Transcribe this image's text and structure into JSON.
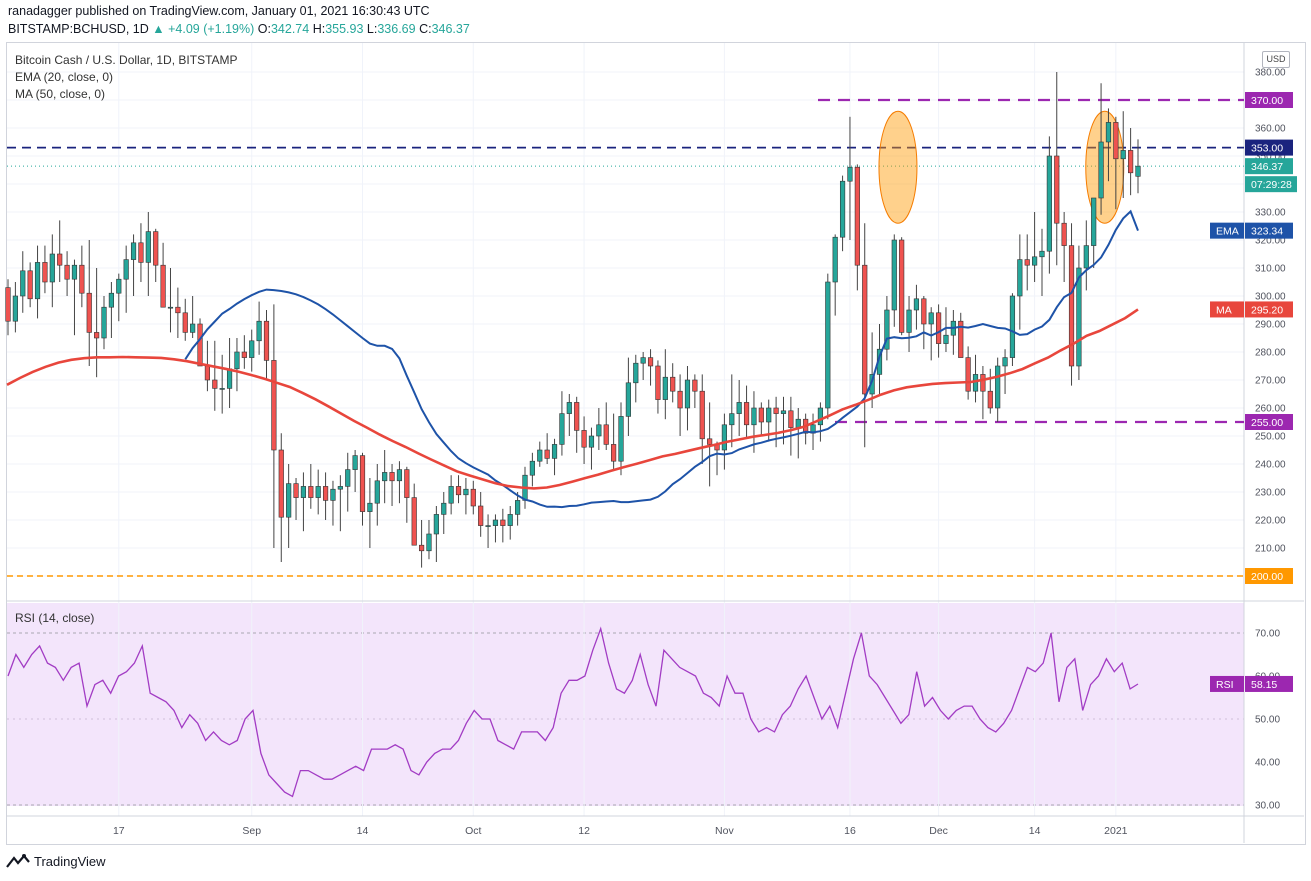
{
  "header": {
    "line1": "ranadagger published on TradingView.com, January 01, 2021 16:30:43 UTC",
    "symbol": "BITSTAMP:BCHUSD, 1D",
    "change": "+4.09 (+1.19%)",
    "o_label": "O:",
    "o_value": "342.74",
    "h_label": "H:",
    "h_value": "355.93",
    "l_label": "L:",
    "l_value": "336.69",
    "c_label": "C:",
    "c_value": "346.37"
  },
  "legend": {
    "title": "Bitcoin Cash / U.S. Dollar, 1D, BITSTAMP",
    "ema": "EMA (20, close, 0)",
    "ma": "MA (50, close, 0)",
    "rsi": "RSI (14, close)"
  },
  "currency_button": "USD",
  "footer": {
    "brand": "TradingView"
  },
  "colors": {
    "up": "#26a69a",
    "down": "#ef5350",
    "ema": "#1e53a8",
    "ma": "#e8463c",
    "rsi": "#a23cc4",
    "purple_level": "#9c27b0",
    "blue_level": "#1a237e",
    "orange_level": "#ff9800"
  },
  "chart_data": [
    {
      "type": "candlestick",
      "y_ticks": [
        "200.00",
        "210.00",
        "220.00",
        "230.00",
        "240.00",
        "250.00",
        "260.00",
        "270.00",
        "280.00",
        "290.00",
        "300.00",
        "310.00",
        "320.00",
        "330.00",
        "340.00",
        "350.00",
        "360.00",
        "370.00",
        "380.00"
      ],
      "x_ticks": [
        "17",
        "Sep",
        "14",
        "Oct",
        "12",
        "Nov",
        "16",
        "Dec",
        "14",
        "2021"
      ],
      "ylim": [
        196,
        384
      ],
      "levels": [
        {
          "label": "370.00",
          "value": 370,
          "style": "purple-dash"
        },
        {
          "label": "353.00",
          "value": 353,
          "style": "blue-dash"
        },
        {
          "label": "255.00",
          "value": 255,
          "style": "purple-dash"
        },
        {
          "label": "200.00",
          "value": 200,
          "style": "orange-dash"
        }
      ],
      "last_price": {
        "label": "346.37",
        "countdown": "07:29:28"
      },
      "ema_label": {
        "name": "EMA",
        "value": "323.34"
      },
      "ma_label": {
        "name": "MA",
        "value": "295.20"
      },
      "candles_ohlc": [
        [
          303,
          306,
          286,
          291
        ],
        [
          291,
          305,
          287,
          300
        ],
        [
          300,
          316,
          294,
          309
        ],
        [
          309,
          312,
          296,
          299
        ],
        [
          299,
          318,
          292,
          312
        ],
        [
          312,
          318,
          301,
          305
        ],
        [
          305,
          322,
          296,
          315
        ],
        [
          315,
          327,
          305,
          311
        ],
        [
          311,
          316,
          300,
          306
        ],
        [
          306,
          313,
          286,
          311
        ],
        [
          311,
          318,
          296,
          301
        ],
        [
          301,
          320,
          275,
          287
        ],
        [
          287,
          310,
          271,
          285
        ],
        [
          285,
          300,
          281,
          296
        ],
        [
          296,
          305,
          285,
          301
        ],
        [
          301,
          308,
          291,
          306
        ],
        [
          306,
          318,
          294,
          313
        ],
        [
          313,
          322,
          300,
          319
        ],
        [
          319,
          326,
          305,
          312
        ],
        [
          312,
          330,
          300,
          323
        ],
        [
          323,
          324,
          305,
          311
        ],
        [
          311,
          319,
          300,
          296
        ],
        [
          296,
          310,
          287,
          296
        ],
        [
          296,
          303,
          285,
          294
        ],
        [
          294,
          299,
          284,
          287
        ],
        [
          287,
          300,
          285,
          290
        ],
        [
          290,
          292,
          275,
          275
        ],
        [
          275,
          284,
          266,
          270
        ],
        [
          270,
          284,
          259,
          267
        ],
        [
          267,
          279,
          258,
          267
        ],
        [
          267,
          285,
          260,
          274
        ],
        [
          274,
          285,
          266,
          280
        ],
        [
          280,
          286,
          274,
          278
        ],
        [
          278,
          288,
          273,
          284
        ],
        [
          284,
          298,
          279,
          291
        ],
        [
          291,
          295,
          270,
          277
        ],
        [
          277,
          297,
          210,
          245
        ],
        [
          245,
          251,
          205,
          221
        ],
        [
          221,
          240,
          210,
          233
        ],
        [
          233,
          235,
          220,
          228
        ],
        [
          228,
          237,
          216,
          232
        ],
        [
          232,
          240,
          224,
          228
        ],
        [
          228,
          238,
          222,
          232
        ],
        [
          232,
          237,
          220,
          227
        ],
        [
          227,
          234,
          218,
          231
        ],
        [
          231,
          236,
          216,
          232
        ],
        [
          232,
          244,
          223,
          238
        ],
        [
          238,
          245,
          230,
          243
        ],
        [
          243,
          244,
          218,
          223
        ],
        [
          223,
          235,
          210,
          226
        ],
        [
          226,
          240,
          218,
          234
        ],
        [
          234,
          245,
          226,
          237
        ],
        [
          237,
          240,
          225,
          234
        ],
        [
          234,
          241,
          226,
          238
        ],
        [
          238,
          239,
          219,
          228
        ],
        [
          228,
          233,
          212,
          211
        ],
        [
          211,
          220,
          203,
          209
        ],
        [
          209,
          220,
          206,
          215
        ],
        [
          215,
          225,
          205,
          222
        ],
        [
          222,
          230,
          215,
          226
        ],
        [
          226,
          236,
          222,
          232
        ],
        [
          232,
          236,
          226,
          229
        ],
        [
          229,
          235,
          222,
          231
        ],
        [
          231,
          234,
          222,
          225
        ],
        [
          225,
          230,
          214,
          218
        ],
        [
          218,
          222,
          210,
          218
        ],
        [
          218,
          222,
          212,
          220
        ],
        [
          220,
          224,
          212,
          218
        ],
        [
          218,
          225,
          213,
          222
        ],
        [
          222,
          230,
          218,
          227
        ],
        [
          227,
          239,
          224,
          236
        ],
        [
          236,
          244,
          232,
          241
        ],
        [
          241,
          248,
          239,
          245
        ],
        [
          245,
          251,
          240,
          242
        ],
        [
          242,
          249,
          236,
          247
        ],
        [
          247,
          266,
          243,
          258
        ],
        [
          258,
          265,
          250,
          262
        ],
        [
          262,
          264,
          244,
          252
        ],
        [
          252,
          257,
          240,
          246
        ],
        [
          246,
          253,
          238,
          250
        ],
        [
          250,
          260,
          245,
          254
        ],
        [
          254,
          262,
          245,
          247
        ],
        [
          247,
          258,
          238,
          241
        ],
        [
          241,
          262,
          236,
          257
        ],
        [
          257,
          278,
          250,
          269
        ],
        [
          269,
          279,
          262,
          276
        ],
        [
          276,
          280,
          270,
          278
        ],
        [
          278,
          281,
          268,
          275
        ],
        [
          275,
          277,
          258,
          263
        ],
        [
          263,
          281,
          256,
          271
        ],
        [
          271,
          276,
          262,
          266
        ],
        [
          266,
          272,
          250,
          260
        ],
        [
          260,
          275,
          252,
          270
        ],
        [
          270,
          272,
          260,
          266
        ],
        [
          266,
          272,
          240,
          249
        ],
        [
          249,
          262,
          232,
          247
        ],
        [
          247,
          248,
          236,
          245
        ],
        [
          245,
          258,
          238,
          254
        ],
        [
          254,
          272,
          246,
          258
        ],
        [
          258,
          270,
          250,
          262
        ],
        [
          262,
          268,
          249,
          254
        ],
        [
          254,
          266,
          244,
          260
        ],
        [
          260,
          262,
          250,
          255
        ],
        [
          255,
          263,
          248,
          260
        ],
        [
          260,
          264,
          246,
          258
        ],
        [
          258,
          264,
          247,
          259
        ],
        [
          259,
          264,
          243,
          253
        ],
        [
          253,
          260,
          242,
          256
        ],
        [
          256,
          258,
          247,
          251
        ],
        [
          251,
          258,
          245,
          254
        ],
        [
          254,
          262,
          248,
          260
        ],
        [
          260,
          308,
          256,
          305
        ],
        [
          305,
          322,
          293,
          321
        ],
        [
          321,
          343,
          316,
          341
        ],
        [
          341,
          364,
          320,
          346
        ],
        [
          346,
          347,
          302,
          311
        ],
        [
          311,
          326,
          246,
          265
        ],
        [
          265,
          287,
          260,
          272
        ],
        [
          272,
          290,
          265,
          281
        ],
        [
          281,
          300,
          277,
          295
        ],
        [
          295,
          322,
          289,
          320
        ],
        [
          320,
          321,
          286,
          287
        ],
        [
          287,
          300,
          280,
          295
        ],
        [
          295,
          304,
          288,
          299
        ],
        [
          299,
          300,
          281,
          290
        ],
        [
          290,
          296,
          277,
          294
        ],
        [
          294,
          297,
          278,
          283
        ],
        [
          283,
          296,
          280,
          286
        ],
        [
          286,
          295,
          279,
          291
        ],
        [
          291,
          294,
          278,
          278
        ],
        [
          278,
          282,
          263,
          266
        ],
        [
          266,
          279,
          262,
          272
        ],
        [
          272,
          275,
          256,
          266
        ],
        [
          266,
          274,
          258,
          260
        ],
        [
          260,
          278,
          255,
          275
        ],
        [
          275,
          281,
          265,
          278
        ],
        [
          278,
          301,
          275,
          300
        ],
        [
          300,
          322,
          288,
          313
        ],
        [
          313,
          322,
          302,
          311
        ],
        [
          311,
          330,
          305,
          314
        ],
        [
          314,
          324,
          300,
          316
        ],
        [
          316,
          357,
          308,
          350
        ],
        [
          350,
          380,
          311,
          326
        ],
        [
          326,
          330,
          305,
          318
        ],
        [
          318,
          326,
          268,
          275
        ],
        [
          275,
          318,
          270,
          310
        ],
        [
          310,
          327,
          302,
          318
        ],
        [
          318,
          335,
          310,
          335
        ],
        [
          335,
          376,
          329,
          355
        ],
        [
          355,
          367,
          341,
          362
        ],
        [
          362,
          364,
          331,
          349
        ],
        [
          349,
          366,
          335,
          352
        ],
        [
          352,
          360,
          336,
          344
        ],
        [
          342.74,
          355.93,
          336.69,
          346.37
        ]
      ],
      "ema20": [
        277.4,
        281.4,
        284.6,
        288.1,
        290.9,
        293.7,
        295.4,
        297.3,
        298.9,
        300.3,
        301.5,
        302.3,
        302.1,
        301.8,
        301.3,
        300.6,
        299.6,
        298.4,
        297,
        295.3,
        293.4,
        291.3,
        289.2,
        287.1,
        285,
        283,
        282.2,
        282.2,
        281.1,
        277.7,
        271.5,
        265.6,
        259.6,
        254.9,
        250.7,
        247.6,
        244.6,
        242,
        240.3,
        238.8,
        237.5,
        236.2,
        234.1,
        232.5,
        230.6,
        228.8,
        227.3,
        226.6,
        225.5,
        224.7,
        224.8,
        224.6,
        225,
        225.1,
        225.6,
        226.2,
        226.4,
        226.6,
        226.8,
        226.4,
        226.4,
        226.7,
        227,
        227.3,
        228.3,
        230.2,
        232.8,
        234.6,
        236.8,
        239,
        240.7,
        242.8,
        243.7,
        243.4,
        243.9,
        245.2,
        246.1,
        247,
        247.6,
        248.4,
        249,
        249.5,
        250.1,
        250.8,
        251.5,
        251.3,
        251.7,
        252.5,
        254.3,
        256.5,
        258.5,
        260.5,
        263.5,
        269.7,
        278.4,
        284.8,
        285.3,
        284.9,
        285.1,
        285.6,
        287,
        285.9,
        287.1,
        288.6,
        288.6,
        289,
        288.7,
        289.3,
        290,
        289.3,
        288.6,
        288.4,
        287.4,
        286.1,
        286.4,
        288,
        289.1,
        291.5,
        296,
        299.6,
        301.1,
        306.6,
        309.2,
        311.1,
        313.8,
        318.3,
        323.6,
        327.7,
        330.2,
        323.34
      ],
      "ma50": [
        268.3,
        270.7,
        272.9,
        274.7,
        276.2,
        277.2,
        277.8,
        278.1,
        278.1,
        278.2,
        278.1,
        278,
        277.9,
        277.4,
        276.7,
        275.8,
        274.9,
        274,
        273,
        271.8,
        270.5,
        269,
        267.5,
        265.4,
        263.1,
        260.6,
        258,
        255.4,
        253,
        250.5,
        248.2,
        246.1,
        243.8,
        241.6,
        239.5,
        237.4,
        235.9,
        234.5,
        233.1,
        232.1,
        231.6,
        231.3,
        231.6,
        232.5,
        233.7,
        235,
        236.2,
        237.6,
        238.9,
        240.1,
        241.4,
        242.7,
        243.6,
        244.7,
        245.8,
        246.8,
        247.9,
        248.8,
        249.7,
        250.4,
        251.1,
        252.1,
        253.3,
        255.3,
        257.3,
        259.5,
        261.1,
        262.9,
        264.8,
        266.3,
        267.4,
        268,
        268.6,
        268.9,
        269.1,
        269.3,
        270.1,
        271.1,
        272.4,
        273.9,
        276,
        278,
        280.6,
        283,
        285.8,
        287.5,
        289.8,
        292.1,
        295.2
      ]
    },
    {
      "type": "line",
      "name": "RSI",
      "y_ticks": [
        "30.00",
        "40.00",
        "50.00",
        "60.00",
        "70.00"
      ],
      "ylim": [
        28,
        74
      ],
      "band": [
        30,
        70
      ],
      "rsi_label": {
        "name": "RSI",
        "value": "58.15"
      },
      "values": [
        60,
        65,
        62,
        65,
        67,
        63,
        62,
        59,
        62,
        63,
        53,
        58,
        59,
        56,
        60,
        61,
        63,
        67,
        56,
        55,
        54,
        52,
        48,
        51,
        49,
        45,
        47,
        45,
        44,
        45,
        50,
        52,
        42,
        37,
        35,
        33,
        32,
        38,
        38,
        37,
        36,
        36,
        37,
        38,
        39,
        38,
        43,
        43,
        43,
        44,
        43,
        38,
        37,
        40,
        42,
        43,
        43,
        45,
        49,
        52,
        50,
        50,
        45,
        44,
        43,
        47,
        47,
        47,
        45,
        48,
        56,
        59,
        59,
        60,
        66,
        71,
        63,
        57,
        56,
        59,
        65,
        58,
        53,
        66,
        64,
        62,
        61,
        60,
        56,
        55,
        53,
        60,
        56,
        56,
        50,
        47,
        48,
        47,
        51,
        53,
        57,
        60,
        55,
        50,
        53,
        48,
        56,
        64,
        70,
        60,
        58,
        55,
        52,
        49,
        51,
        61,
        53,
        55,
        52,
        50,
        52,
        53,
        53,
        50,
        48,
        47,
        49,
        52,
        57,
        62,
        61,
        63,
        70,
        54,
        62,
        64,
        52,
        58,
        60,
        64,
        61,
        63,
        57,
        58.15
      ]
    }
  ]
}
